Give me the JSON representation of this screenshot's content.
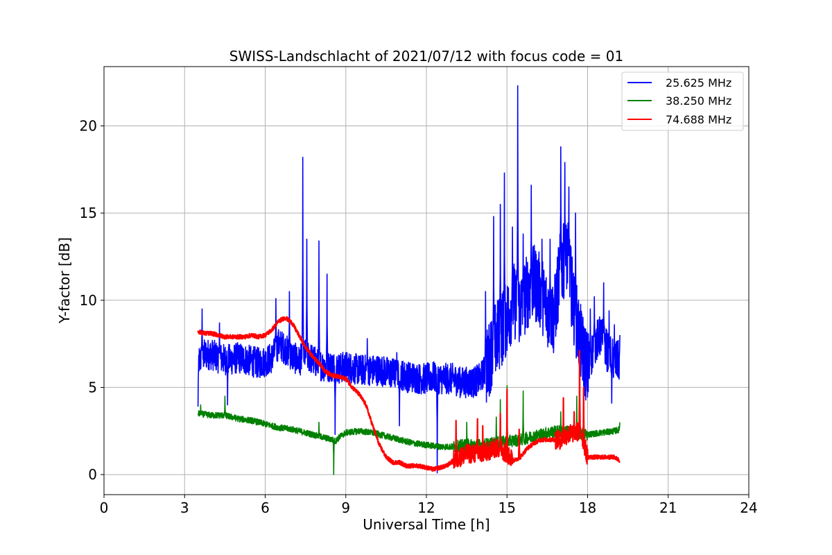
{
  "chart_data": {
    "type": "line",
    "title": "SWISS-Landschlacht of 2021/07/12 with focus code = 01",
    "xlabel": "Universal Time [h]",
    "ylabel": "Y-factor [dB]",
    "xlim": [
      0,
      24
    ],
    "ylim": [
      -1.15,
      23.4
    ],
    "xticks": [
      0,
      3,
      6,
      9,
      12,
      15,
      18,
      21,
      24
    ],
    "yticks": [
      0,
      5,
      10,
      15,
      20
    ],
    "grid": true,
    "legend_position": "top-right",
    "series": [
      {
        "name": "25.625 MHz",
        "color": "#0000ff",
        "x": [
          3.5,
          3.6,
          3.75,
          4.0,
          4.25,
          4.5,
          4.75,
          5.0,
          5.25,
          5.5,
          5.75,
          6.0,
          6.25,
          6.5,
          6.75,
          7.0,
          7.25,
          7.5,
          7.75,
          8.0,
          8.25,
          8.5,
          8.75,
          9.0,
          9.25,
          9.5,
          9.75,
          10.0,
          10.25,
          10.5,
          10.75,
          11.0,
          11.25,
          11.5,
          11.75,
          12.0,
          12.25,
          12.5,
          12.75,
          13.0,
          13.25,
          13.5,
          13.75,
          14.0,
          14.25,
          14.5,
          14.75,
          15.0,
          15.25,
          15.5,
          15.75,
          16.0,
          16.25,
          16.5,
          16.75,
          17.0,
          17.25,
          17.5,
          17.75,
          18.0,
          18.25,
          18.5,
          18.75,
          19.0,
          19.2
        ],
        "y": [
          6.5,
          6.6,
          6.9,
          6.9,
          6.7,
          6.6,
          6.6,
          6.7,
          6.6,
          6.5,
          6.4,
          6.5,
          6.7,
          7.5,
          7.2,
          6.8,
          6.5,
          6.9,
          6.6,
          6.3,
          6.2,
          6.2,
          6.1,
          6.2,
          6.1,
          6.0,
          6.0,
          6.0,
          6.0,
          5.9,
          5.8,
          5.8,
          5.6,
          5.6,
          5.5,
          5.5,
          5.6,
          5.5,
          5.5,
          5.5,
          5.3,
          5.3,
          5.3,
          5.5,
          6.2,
          7.5,
          8.2,
          9.0,
          10.0,
          9.5,
          10.5,
          11.0,
          10.5,
          9.5,
          9.0,
          12.0,
          12.5,
          9.5,
          7.5,
          6.0,
          7.5,
          8.0,
          7.0,
          6.5,
          6.5
        ],
        "peaks": [
          [
            3.5,
            3.9
          ],
          [
            3.65,
            9.5
          ],
          [
            4.3,
            8.7
          ],
          [
            4.6,
            4.0
          ],
          [
            6.4,
            10.1
          ],
          [
            6.9,
            10.5
          ],
          [
            7.4,
            18.2
          ],
          [
            7.55,
            13.5
          ],
          [
            8.0,
            13.4
          ],
          [
            8.3,
            11.5
          ],
          [
            8.6,
            2.3
          ],
          [
            9.8,
            7.8
          ],
          [
            10.9,
            7.0
          ],
          [
            11.0,
            2.8
          ],
          [
            12.4,
            0.1
          ],
          [
            14.2,
            10.5
          ],
          [
            14.5,
            14.8
          ],
          [
            14.75,
            15.5
          ],
          [
            14.9,
            17.3
          ],
          [
            15.2,
            14.2
          ],
          [
            15.4,
            22.3
          ],
          [
            15.6,
            13.8
          ],
          [
            15.9,
            16.6
          ],
          [
            16.3,
            13.5
          ],
          [
            16.6,
            13.5
          ],
          [
            17.0,
            18.8
          ],
          [
            17.15,
            17.9
          ],
          [
            17.3,
            16.5
          ],
          [
            17.55,
            15.0
          ],
          [
            18.1,
            9.5
          ],
          [
            18.25,
            10.2
          ],
          [
            18.6,
            11.0
          ],
          [
            18.8,
            9.4
          ],
          [
            19.0,
            8.6
          ],
          [
            18.9,
            4.1
          ],
          [
            19.2,
            8.0
          ]
        ]
      },
      {
        "name": "38.250 MHz",
        "color": "#008000",
        "x": [
          3.5,
          4.0,
          4.5,
          5.0,
          5.5,
          6.0,
          6.5,
          7.0,
          7.5,
          8.0,
          8.5,
          8.6,
          8.8,
          9.0,
          9.5,
          10.0,
          10.5,
          11.0,
          11.5,
          12.0,
          12.5,
          13.0,
          13.5,
          14.0,
          14.5,
          15.0,
          15.5,
          16.0,
          16.5,
          17.0,
          17.5,
          18.0,
          18.5,
          19.0,
          19.2
        ],
        "y": [
          3.5,
          3.4,
          3.4,
          3.2,
          3.1,
          2.9,
          2.7,
          2.6,
          2.4,
          2.2,
          2.0,
          1.9,
          2.2,
          2.4,
          2.5,
          2.4,
          2.2,
          2.0,
          1.8,
          1.7,
          1.6,
          1.6,
          1.7,
          1.7,
          1.8,
          1.9,
          2.0,
          2.2,
          2.4,
          2.5,
          2.4,
          2.3,
          2.4,
          2.5,
          2.6
        ],
        "peaks": [
          [
            3.6,
            4.0
          ],
          [
            4.5,
            4.5
          ],
          [
            8.55,
            0.0
          ],
          [
            8.0,
            3.0
          ],
          [
            13.5,
            3.0
          ],
          [
            14.6,
            3.3
          ],
          [
            14.75,
            4.3
          ],
          [
            15.0,
            5.1
          ],
          [
            15.6,
            4.8
          ],
          [
            17.0,
            3.6
          ],
          [
            17.6,
            4.5
          ],
          [
            19.2,
            3.0
          ]
        ]
      },
      {
        "name": "74.688 MHz",
        "color": "#ff0000",
        "x": [
          3.5,
          3.75,
          4.0,
          4.25,
          4.5,
          4.75,
          5.0,
          5.25,
          5.5,
          5.75,
          6.0,
          6.25,
          6.5,
          6.75,
          7.0,
          7.25,
          7.5,
          7.75,
          8.0,
          8.25,
          8.5,
          8.75,
          9.0,
          9.25,
          9.5,
          9.75,
          10.0,
          10.25,
          10.5,
          10.75,
          11.0,
          11.25,
          11.5,
          11.75,
          12.0,
          12.25,
          12.5,
          12.75,
          13.0,
          13.25,
          13.5,
          13.75,
          14.0,
          14.25,
          14.5,
          14.75,
          15.0,
          15.25,
          15.5,
          15.75,
          16.0,
          16.25,
          16.5,
          16.75,
          17.0,
          17.25,
          17.5,
          17.75,
          18.0,
          18.25,
          18.5,
          18.75,
          19.0,
          19.2
        ],
        "y": [
          8.2,
          8.1,
          8.1,
          8.0,
          7.9,
          7.9,
          7.9,
          7.9,
          8.0,
          7.9,
          8.0,
          8.3,
          8.8,
          9.0,
          8.7,
          8.0,
          7.3,
          6.8,
          6.4,
          5.9,
          5.7,
          5.6,
          5.5,
          5.0,
          4.6,
          4.0,
          2.8,
          1.7,
          1.0,
          0.7,
          0.7,
          0.5,
          0.5,
          0.5,
          0.4,
          0.3,
          0.4,
          0.5,
          0.8,
          1.0,
          1.2,
          1.2,
          1.2,
          1.3,
          1.5,
          1.5,
          1.2,
          0.8,
          1.0,
          1.5,
          1.8,
          2.0,
          2.0,
          2.0,
          2.0,
          2.3,
          2.4,
          2.5,
          1.0,
          1.0,
          1.0,
          1.0,
          1.0,
          0.8
        ],
        "peaks": [
          [
            13.1,
            3.1
          ],
          [
            13.9,
            3.2
          ],
          [
            14.1,
            2.8
          ],
          [
            14.75,
            3.5
          ],
          [
            15.0,
            4.9
          ],
          [
            15.45,
            2.6
          ],
          [
            17.1,
            4.4
          ],
          [
            17.5,
            3.6
          ],
          [
            17.7,
            7.1
          ],
          [
            17.85,
            5.0
          ]
        ]
      }
    ]
  }
}
